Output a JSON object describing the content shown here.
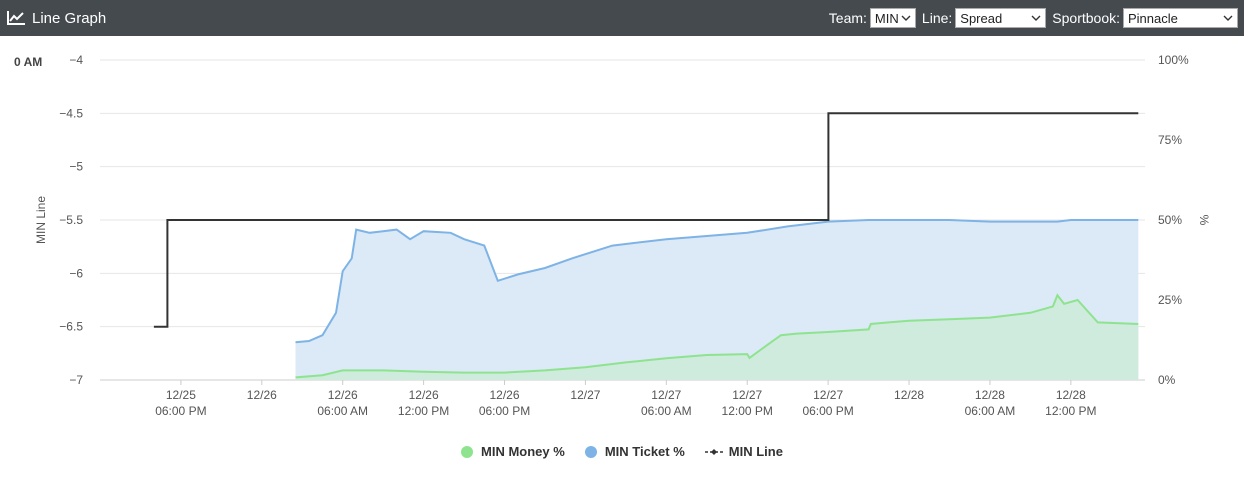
{
  "header": {
    "title": "Line Graph",
    "team_label": "Team:",
    "team_value": "MIN",
    "line_label": "Line:",
    "line_value": "Spread",
    "book_label": "Sportbook:",
    "book_value": "Pinnacle"
  },
  "corner_label": "0 AM",
  "colors": {
    "header_bg": "#454a4f",
    "money": "#8ee38e",
    "money_fill": "#cdebdb",
    "ticket": "#7eb3e6",
    "ticket_fill": "#dce9f6",
    "line": "#333333"
  },
  "chart_data": {
    "type": "line",
    "x_domain": [
      "12/25 12:00",
      "12/28 17:30"
    ],
    "x_ticks": [
      {
        "t": "12/25 18:00",
        "label": [
          "12/25",
          "06:00 PM"
        ]
      },
      {
        "t": "12/26 00:00",
        "label": [
          "12/26",
          ""
        ]
      },
      {
        "t": "12/26 06:00",
        "label": [
          "12/26",
          "06:00 AM"
        ]
      },
      {
        "t": "12/26 12:00",
        "label": [
          "12/26",
          "12:00 PM"
        ]
      },
      {
        "t": "12/26 18:00",
        "label": [
          "12/26",
          "06:00 PM"
        ]
      },
      {
        "t": "12/27 00:00",
        "label": [
          "12/27",
          ""
        ]
      },
      {
        "t": "12/27 06:00",
        "label": [
          "12/27",
          "06:00 AM"
        ]
      },
      {
        "t": "12/27 12:00",
        "label": [
          "12/27",
          "12:00 PM"
        ]
      },
      {
        "t": "12/27 18:00",
        "label": [
          "12/27",
          "06:00 PM"
        ]
      },
      {
        "t": "12/28 00:00",
        "label": [
          "12/28",
          ""
        ]
      },
      {
        "t": "12/28 06:00",
        "label": [
          "12/28",
          "06:00 AM"
        ]
      },
      {
        "t": "12/28 12:00",
        "label": [
          "12/28",
          "12:00 PM"
        ]
      }
    ],
    "y_left": {
      "label": "MIN Line",
      "range": [
        -7,
        -4
      ],
      "ticks": [
        -4,
        -4.5,
        -5,
        -5.5,
        -6,
        -6.5,
        -7
      ],
      "tick_labels": [
        "−4",
        "−4.5",
        "−5",
        "−5.5",
        "−6",
        "−6.5",
        "−7"
      ]
    },
    "y_right": {
      "label": "%",
      "range": [
        0,
        100
      ],
      "ticks": [
        0,
        25,
        50,
        75,
        100
      ],
      "tick_labels": [
        "0%",
        "25%",
        "50%",
        "75%",
        "100%"
      ]
    },
    "series": [
      {
        "name": "MIN Money %",
        "axis": "right",
        "points": [
          [
            "12/26 02:30",
            0.8
          ],
          [
            "12/26 04:30",
            1.5
          ],
          [
            "12/26 06:00",
            3.0
          ],
          [
            "12/26 09:00",
            3.0
          ],
          [
            "12/26 12:00",
            2.6
          ],
          [
            "12/26 15:00",
            2.3
          ],
          [
            "12/26 18:00",
            2.3
          ],
          [
            "12/26 21:00",
            3.0
          ],
          [
            "12/27 00:00",
            4.0
          ],
          [
            "12/27 03:00",
            5.5
          ],
          [
            "12/27 06:00",
            6.8
          ],
          [
            "12/27 09:00",
            7.8
          ],
          [
            "12/27 12:00",
            8.1
          ],
          [
            "12/27 12:10",
            6.9
          ],
          [
            "12/27 13:30",
            11.0
          ],
          [
            "12/27 14:30",
            14.0
          ],
          [
            "12/27 15:40",
            14.5
          ],
          [
            "12/27 18:00",
            15.0
          ],
          [
            "12/27 21:00",
            15.8
          ],
          [
            "12/27 21:10",
            17.5
          ],
          [
            "12/27 22:30",
            18.0
          ],
          [
            "12/28 00:00",
            18.5
          ],
          [
            "12/28 03:00",
            19.0
          ],
          [
            "12/28 06:00",
            19.5
          ],
          [
            "12/28 09:00",
            21.0
          ],
          [
            "12/28 10:40",
            23.0
          ],
          [
            "12/28 11:00",
            26.5
          ],
          [
            "12/28 11:30",
            23.8
          ],
          [
            "12/28 12:30",
            25.0
          ],
          [
            "12/28 14:00",
            18.0
          ],
          [
            "12/28 17:00",
            17.5
          ]
        ]
      },
      {
        "name": "MIN Ticket %",
        "axis": "right",
        "points": [
          [
            "12/26 02:30",
            11.8
          ],
          [
            "12/26 03:30",
            12.2
          ],
          [
            "12/26 04:30",
            14.0
          ],
          [
            "12/26 05:30",
            21.0
          ],
          [
            "12/26 06:00",
            34.0
          ],
          [
            "12/26 06:40",
            38.0
          ],
          [
            "12/26 07:00",
            47.0
          ],
          [
            "12/26 08:00",
            46.0
          ],
          [
            "12/26 10:00",
            47.0
          ],
          [
            "12/26 11:00",
            44.0
          ],
          [
            "12/26 12:00",
            46.5
          ],
          [
            "12/26 14:00",
            46.0
          ],
          [
            "12/26 15:00",
            44.0
          ],
          [
            "12/26 16:30",
            42.0
          ],
          [
            "12/26 17:30",
            31.0
          ],
          [
            "12/26 19:00",
            33.0
          ],
          [
            "12/26 21:00",
            35.0
          ],
          [
            "12/26 23:00",
            38.0
          ],
          [
            "12/27 02:00",
            42.0
          ],
          [
            "12/27 06:00",
            44.0
          ],
          [
            "12/27 09:00",
            45.0
          ],
          [
            "12/27 12:00",
            46.0
          ],
          [
            "12/27 15:00",
            48.0
          ],
          [
            "12/27 18:00",
            49.5
          ],
          [
            "12/27 21:00",
            50.0
          ],
          [
            "12/28 00:00",
            50.0
          ],
          [
            "12/28 03:00",
            50.0
          ],
          [
            "12/28 06:00",
            49.5
          ],
          [
            "12/28 09:00",
            49.5
          ],
          [
            "12/28 11:00",
            49.5
          ],
          [
            "12/28 12:00",
            50.0
          ],
          [
            "12/28 14:00",
            50.0
          ],
          [
            "12/28 17:00",
            50.0
          ]
        ]
      },
      {
        "name": "MIN Line",
        "axis": "left",
        "step": true,
        "points": [
          [
            "12/25 16:00",
            -6.5
          ],
          [
            "12/25 17:00",
            -5.5
          ],
          [
            "12/27 18:00",
            -5.5
          ],
          [
            "12/27 18:01",
            -4.5
          ],
          [
            "12/28 17:00",
            -4.5
          ]
        ]
      }
    ],
    "legend": [
      "MIN Money %",
      "MIN Ticket %",
      "MIN Line"
    ],
    "legend_position": "bottom-center",
    "grid": true
  }
}
